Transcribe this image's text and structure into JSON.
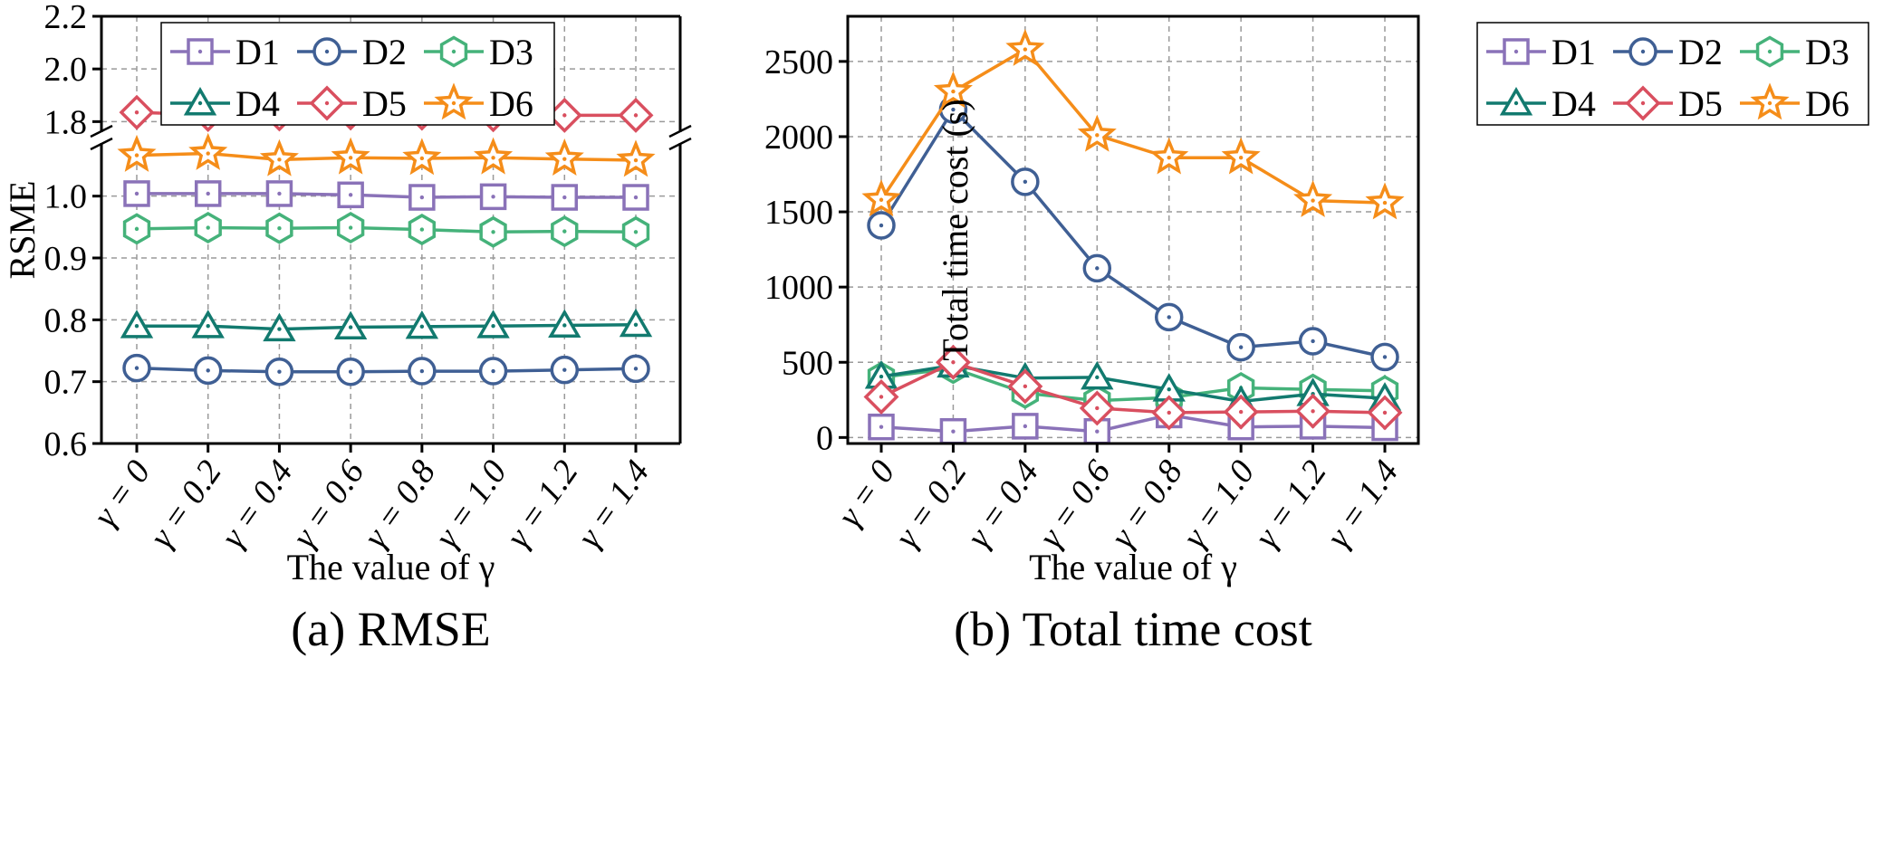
{
  "colors": {
    "D1": "#8a72b8",
    "D2": "#3f5f94",
    "D3": "#45b27a",
    "D4": "#127a6f",
    "D5": "#d94f5f",
    "D6": "#f58d19"
  },
  "markers": {
    "D1": "square",
    "D2": "circle",
    "D3": "hexagon",
    "D4": "triangle",
    "D5": "diamond",
    "D6": "star"
  },
  "chart_data": [
    {
      "type": "line",
      "caption": "(a) RMSE",
      "xlabel": "The value of γ",
      "ylabel": "RSME",
      "categories": [
        "γ = 0",
        "γ = 0.2",
        "γ = 0.4",
        "γ = 0.6",
        "γ = 0.8",
        "γ = 1.0",
        "γ = 1.2",
        "γ = 1.4"
      ],
      "y_axis_break": true,
      "ylim_lower": [
        0.6,
        1.08
      ],
      "ylim_upper": [
        1.76,
        2.2
      ],
      "yticks_lower": [
        "0.6",
        "0.7",
        "0.8",
        "0.9",
        "1.0"
      ],
      "yticks_upper": [
        "1.8",
        "2.0",
        "2.2"
      ],
      "grid": true,
      "legend_position": "top-left",
      "series": [
        {
          "name": "D1",
          "values": [
            1.004,
            1.004,
            1.004,
            1.002,
            0.998,
            0.999,
            0.998,
            0.998
          ]
        },
        {
          "name": "D2",
          "values": [
            0.722,
            0.718,
            0.716,
            0.716,
            0.717,
            0.717,
            0.719,
            0.721
          ]
        },
        {
          "name": "D3",
          "values": [
            0.947,
            0.949,
            0.948,
            0.949,
            0.946,
            0.942,
            0.943,
            0.942
          ]
        },
        {
          "name": "D4",
          "values": [
            0.79,
            0.79,
            0.785,
            0.788,
            0.789,
            0.79,
            0.791,
            0.792
          ]
        },
        {
          "name": "D5",
          "values": [
            1.835,
            1.827,
            1.829,
            1.833,
            1.832,
            1.826,
            1.824,
            1.824
          ]
        },
        {
          "name": "D6",
          "values": [
            1.066,
            1.069,
            1.059,
            1.062,
            1.061,
            1.062,
            1.06,
            1.058
          ]
        }
      ]
    },
    {
      "type": "line",
      "caption": "(b) Total time cost",
      "xlabel": "The value of γ",
      "ylabel": "Total time cost (s)",
      "categories": [
        "γ = 0",
        "γ = 0.2",
        "γ = 0.4",
        "γ = 0.6",
        "γ = 0.8",
        "γ = 1.0",
        "γ = 1.2",
        "γ = 1.4"
      ],
      "ylim": [
        -40,
        2800
      ],
      "yticks": [
        "0",
        "500",
        "1000",
        "1500",
        "2000",
        "2500"
      ],
      "grid": true,
      "legend_position": "top-right",
      "series": [
        {
          "name": "D1",
          "values": [
            70,
            40,
            75,
            40,
            150,
            70,
            75,
            65
          ]
        },
        {
          "name": "D2",
          "values": [
            1410,
            2180,
            1700,
            1125,
            800,
            600,
            640,
            535
          ]
        },
        {
          "name": "D3",
          "values": [
            400,
            460,
            295,
            245,
            265,
            330,
            320,
            310
          ]
        },
        {
          "name": "D4",
          "values": [
            405,
            480,
            395,
            400,
            320,
            240,
            290,
            260
          ]
        },
        {
          "name": "D5",
          "values": [
            270,
            500,
            340,
            195,
            165,
            170,
            175,
            165
          ]
        },
        {
          "name": "D6",
          "values": [
            1580,
            2300,
            2580,
            2010,
            1860,
            1860,
            1575,
            1560
          ]
        }
      ]
    }
  ]
}
